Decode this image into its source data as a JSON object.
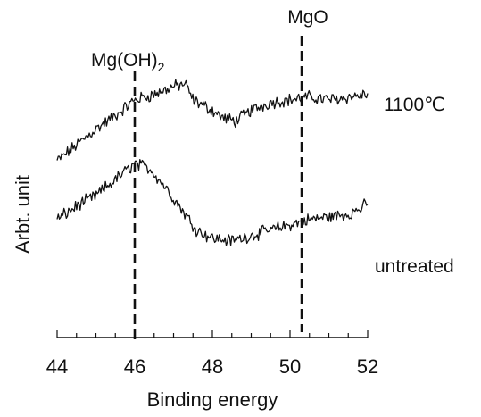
{
  "chart_data": {
    "type": "line",
    "xlabel": "Binding energy",
    "ylabel": "Arbt. unit",
    "xlim": [
      44,
      52
    ],
    "xticks": [
      "44",
      "46",
      "48",
      "50",
      "52"
    ],
    "yticks": "none",
    "grid": false,
    "reference_lines": [
      {
        "x": 46.0,
        "label": "Mg(OH)",
        "subscript": "2",
        "style": "dashed"
      },
      {
        "x": 50.3,
        "label": "MgO",
        "subscript": "",
        "style": "dashed"
      }
    ],
    "series": [
      {
        "name": "1100℃",
        "x": [
          44.0,
          44.5,
          45.0,
          45.5,
          46.0,
          46.5,
          47.0,
          47.3,
          47.5,
          48.0,
          48.3,
          48.6,
          49.0,
          49.5,
          50.0,
          50.5,
          51.0,
          51.5,
          52.0
        ],
        "y": [
          0.63,
          0.69,
          0.75,
          0.8,
          0.86,
          0.88,
          0.91,
          0.92,
          0.86,
          0.82,
          0.79,
          0.78,
          0.82,
          0.85,
          0.86,
          0.87,
          0.86,
          0.87,
          0.88
        ]
      },
      {
        "name": "untreated",
        "x": [
          44.0,
          44.5,
          45.0,
          45.5,
          46.0,
          46.4,
          46.8,
          47.2,
          47.6,
          48.0,
          48.5,
          49.0,
          49.5,
          50.0,
          50.5,
          51.0,
          51.5,
          51.8,
          52.0
        ],
        "y": [
          0.41,
          0.46,
          0.5,
          0.56,
          0.62,
          0.6,
          0.53,
          0.45,
          0.37,
          0.34,
          0.33,
          0.35,
          0.37,
          0.39,
          0.41,
          0.42,
          0.43,
          0.45,
          0.47
        ]
      }
    ]
  }
}
